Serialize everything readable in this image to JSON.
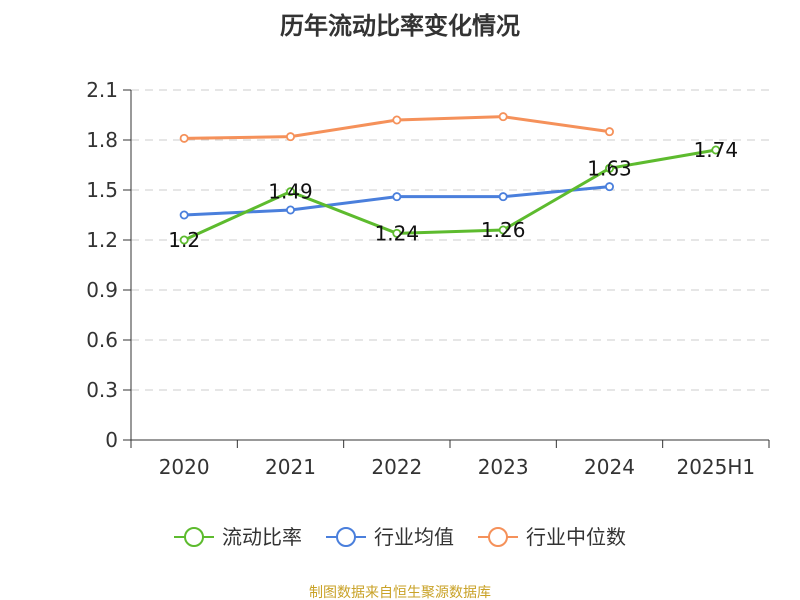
{
  "title": "历年流动比率变化情况",
  "footer": "制图数据来自恒生聚源数据库",
  "colors": {
    "流动比率": "#5dbb2e",
    "行业均值": "#4a7fdc",
    "行业中位数": "#f5915a",
    "axis": "#333333",
    "grid": "#cccccc"
  },
  "chart_data": {
    "type": "line",
    "title": "历年流动比率变化情况",
    "categories": [
      "2020",
      "2021",
      "2022",
      "2023",
      "2024",
      "2025H1"
    ],
    "ylim": [
      0,
      2.1
    ],
    "yticks": [
      "0",
      "0.3",
      "0.6",
      "0.9",
      "1.2",
      "1.5",
      "1.8",
      "2.1"
    ],
    "grid": true,
    "legend_position": "bottom",
    "series": [
      {
        "name": "流动比率",
        "values": [
          1.2,
          1.49,
          1.24,
          1.26,
          1.63,
          1.74
        ],
        "labels": [
          "1.2",
          "1.49",
          "1.24",
          "1.26",
          "1.63",
          "1.74"
        ]
      },
      {
        "name": "行业均值",
        "values": [
          1.35,
          1.38,
          1.46,
          1.46,
          1.52,
          null
        ]
      },
      {
        "name": "行业中位数",
        "values": [
          1.81,
          1.82,
          1.92,
          1.94,
          1.85,
          null
        ]
      }
    ]
  }
}
